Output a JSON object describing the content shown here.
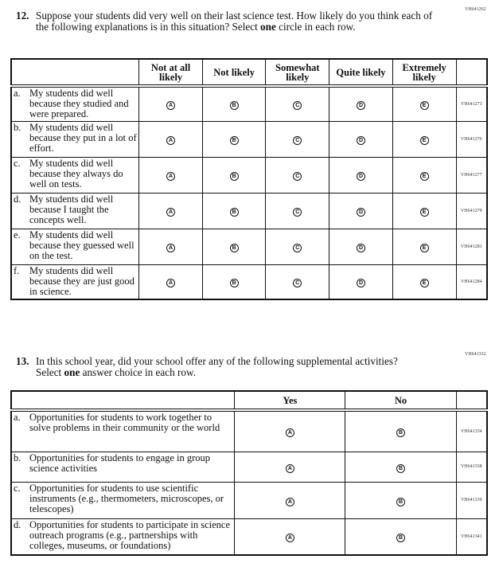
{
  "q12": {
    "code": "VH641262",
    "number": "12.",
    "text_before": "Suppose your students did very well on their last science test. How likely do you think each of the following explanations is in this situation? Select ",
    "text_bold": "one",
    "text_after": " circle in each row.",
    "columns": [
      "Not at all likely",
      "Not likely",
      "Somewhat likely",
      "Quite likely",
      "Extremely likely"
    ],
    "bubbles": [
      "A",
      "B",
      "C",
      "D",
      "E"
    ],
    "rows": [
      {
        "letter": "a.",
        "text": "My students did well because they studied and were prepared.",
        "code": "VH641273"
      },
      {
        "letter": "b.",
        "text": "My students did well because they put in a lot of effort.",
        "code": "VH641276"
      },
      {
        "letter": "c.",
        "text": "My students did well because they always do well on tests.",
        "code": "VH641277"
      },
      {
        "letter": "d.",
        "text": "My students did well because I taught the concepts well.",
        "code": "VH641279"
      },
      {
        "letter": "e.",
        "text": "My students did well because they guessed well on the test.",
        "code": "VH641281"
      },
      {
        "letter": "f.",
        "text": "My students did well because they are just good in science.",
        "code": "VH641284"
      }
    ]
  },
  "q13": {
    "code": "VH641332",
    "number": "13.",
    "text_before": "In this school year, did your school offer any of the following supplemental activities? Select ",
    "text_bold": "one",
    "text_after": " answer choice in each row.",
    "columns": [
      "Yes",
      "No"
    ],
    "bubbles": [
      "A",
      "B"
    ],
    "rows": [
      {
        "letter": "a.",
        "text": "Opportunities for students to work together to solve problems in their community or the world",
        "code": "VH641334"
      },
      {
        "letter": "b.",
        "text": "Opportunities for students to engage in group science activities",
        "code": "VH641338"
      },
      {
        "letter": "c.",
        "text": "Opportunities for students to use scientific instruments (e.g., thermometers, microscopes, or telescopes)",
        "code": "VH641339"
      },
      {
        "letter": "d.",
        "text": "Opportunities for students to participate in science outreach programs (e.g., partnerships with colleges, museums, or foundations)",
        "code": "VH641341"
      }
    ]
  }
}
